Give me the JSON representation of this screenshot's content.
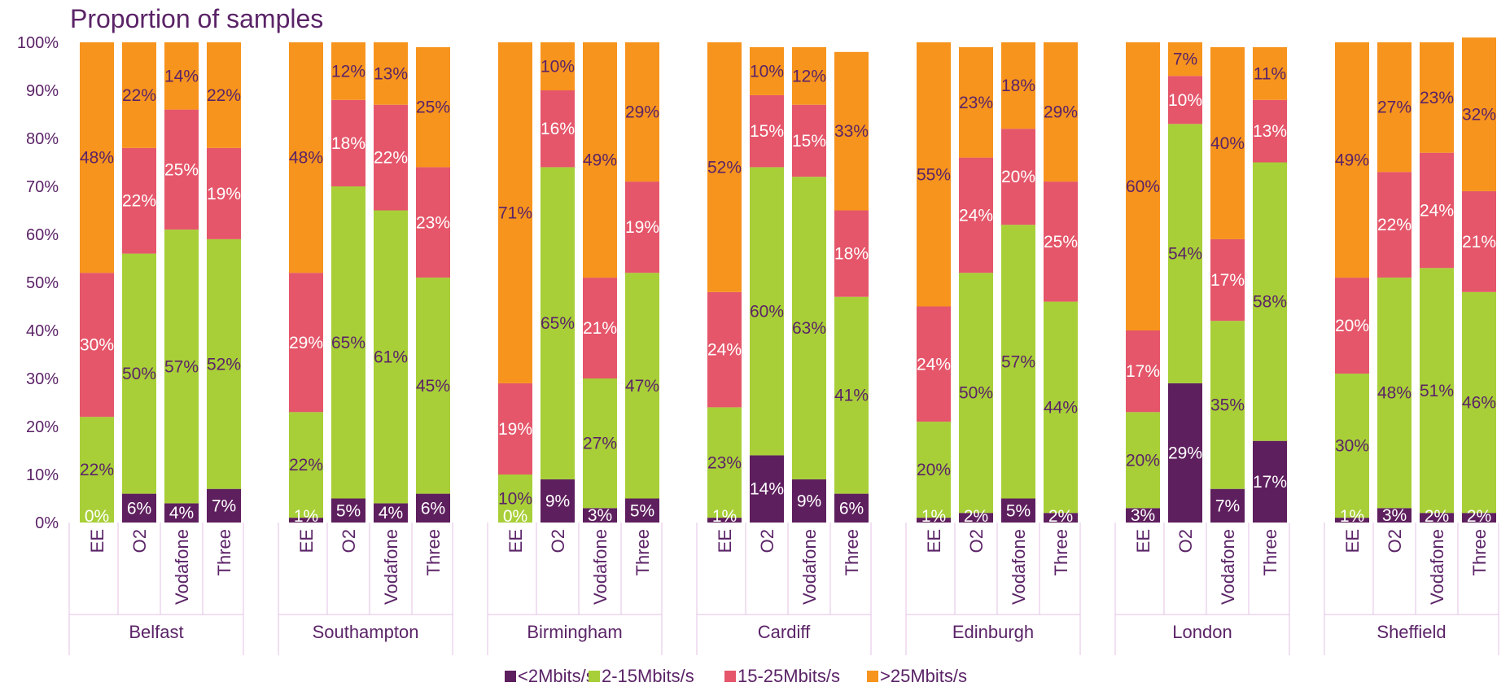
{
  "chart_data": {
    "type": "bar",
    "stacked": true,
    "title": "Proportion of samples",
    "ylim": [
      0,
      100
    ],
    "yticks": [
      "0%",
      "10%",
      "20%",
      "30%",
      "40%",
      "50%",
      "60%",
      "70%",
      "80%",
      "90%",
      "100%"
    ],
    "legend_position": "bottom",
    "series": [
      {
        "name": "<2Mbits/s",
        "color": "#5e1f5e",
        "label_color": "#ffffff"
      },
      {
        "name": "2-15Mbits/s",
        "color": "#a8cf38",
        "label_color": "#5b2367"
      },
      {
        "name": "15-25Mbits/s",
        "color": "#e5566a",
        "label_color": "#ffffff"
      },
      {
        "name": ">25Mbits/s",
        "color": "#f7941d",
        "label_color": "#5b2367"
      }
    ],
    "groups": [
      {
        "city": "Belfast",
        "bars": [
          {
            "operator": "EE",
            "values": [
              0,
              22,
              30,
              48
            ],
            "labels": [
              "0%",
              "22%",
              "30%",
              "48%"
            ]
          },
          {
            "operator": "O2",
            "values": [
              6,
              50,
              22,
              22
            ],
            "labels": [
              "6%",
              "50%",
              "22%",
              "22%"
            ]
          },
          {
            "operator": "Vodafone",
            "values": [
              4,
              57,
              25,
              14
            ],
            "labels": [
              "4%",
              "57%",
              "25%",
              "14%"
            ]
          },
          {
            "operator": "Three",
            "values": [
              7,
              52,
              19,
              22
            ],
            "labels": [
              "7%",
              "52%",
              "19%",
              "22%"
            ]
          }
        ]
      },
      {
        "city": "Southampton",
        "bars": [
          {
            "operator": "EE",
            "values": [
              1,
              22,
              29,
              48
            ],
            "labels": [
              "1%",
              "22%",
              "29%",
              "48%"
            ]
          },
          {
            "operator": "O2",
            "values": [
              5,
              65,
              18,
              12
            ],
            "labels": [
              "5%",
              "65%",
              "18%",
              "12%"
            ]
          },
          {
            "operator": "Vodafone",
            "values": [
              4,
              61,
              22,
              13
            ],
            "labels": [
              "4%",
              "61%",
              "22%",
              "13%"
            ]
          },
          {
            "operator": "Three",
            "values": [
              6,
              45,
              23,
              25
            ],
            "labels": [
              "6%",
              "45%",
              "23%",
              "25%"
            ]
          }
        ]
      },
      {
        "city": "Birmingham",
        "bars": [
          {
            "operator": "EE",
            "values": [
              0,
              10,
              19,
              71
            ],
            "labels": [
              "0%",
              "10%",
              "19%",
              "71%"
            ]
          },
          {
            "operator": "O2",
            "values": [
              9,
              65,
              16,
              10
            ],
            "labels": [
              "9%",
              "65%",
              "16%",
              "10%"
            ]
          },
          {
            "operator": "Vodafone",
            "values": [
              3,
              27,
              21,
              49
            ],
            "labels": [
              "3%",
              "27%",
              "21%",
              "49%"
            ]
          },
          {
            "operator": "Three",
            "values": [
              5,
              47,
              19,
              29
            ],
            "labels": [
              "5%",
              "47%",
              "19%",
              "29%"
            ]
          }
        ]
      },
      {
        "city": "Cardiff",
        "bars": [
          {
            "operator": "EE",
            "values": [
              1,
              23,
              24,
              52
            ],
            "labels": [
              "1%",
              "23%",
              "24%",
              "52%"
            ]
          },
          {
            "operator": "O2",
            "values": [
              14,
              60,
              15,
              10
            ],
            "labels": [
              "14%",
              "60%",
              "15%",
              "10%"
            ]
          },
          {
            "operator": "Vodafone",
            "values": [
              9,
              63,
              15,
              12
            ],
            "labels": [
              "9%",
              "63%",
              "15%",
              "12%"
            ]
          },
          {
            "operator": "Three",
            "values": [
              6,
              41,
              18,
              33
            ],
            "labels": [
              "6%",
              "41%",
              "18%",
              "33%"
            ]
          }
        ]
      },
      {
        "city": "Edinburgh",
        "bars": [
          {
            "operator": "EE",
            "values": [
              1,
              20,
              24,
              55
            ],
            "labels": [
              "1%",
              "20%",
              "24%",
              "55%"
            ]
          },
          {
            "operator": "O2",
            "values": [
              2,
              50,
              24,
              23
            ],
            "labels": [
              "2%",
              "50%",
              "24%",
              "23%"
            ]
          },
          {
            "operator": "Vodafone",
            "values": [
              5,
              57,
              20,
              18
            ],
            "labels": [
              "5%",
              "57%",
              "20%",
              "18%"
            ]
          },
          {
            "operator": "Three",
            "values": [
              2,
              44,
              25,
              29
            ],
            "labels": [
              "2%",
              "44%",
              "25%",
              "29%"
            ]
          }
        ]
      },
      {
        "city": "London",
        "bars": [
          {
            "operator": "EE",
            "values": [
              3,
              20,
              17,
              60
            ],
            "labels": [
              "3%",
              "20%",
              "17%",
              "60%"
            ]
          },
          {
            "operator": "O2",
            "values": [
              29,
              54,
              10,
              7
            ],
            "labels": [
              "29%",
              "54%",
              "10%",
              "7%"
            ]
          },
          {
            "operator": "Vodafone",
            "values": [
              7,
              35,
              17,
              40
            ],
            "labels": [
              "7%",
              "35%",
              "17%",
              "40%"
            ]
          },
          {
            "operator": "Three",
            "values": [
              17,
              58,
              13,
              11
            ],
            "labels": [
              "17%",
              "58%",
              "13%",
              "11%"
            ]
          }
        ]
      },
      {
        "city": "Sheffield",
        "bars": [
          {
            "operator": "EE",
            "values": [
              1,
              30,
              20,
              49
            ],
            "labels": [
              "1%",
              "30%",
              "20%",
              "49%"
            ]
          },
          {
            "operator": "O2",
            "values": [
              3,
              48,
              22,
              27
            ],
            "labels": [
              "3%",
              "48%",
              "22%",
              "27%"
            ]
          },
          {
            "operator": "Vodafone",
            "values": [
              2,
              51,
              24,
              23
            ],
            "labels": [
              "2%",
              "51%",
              "24%",
              "23%"
            ]
          },
          {
            "operator": "Three",
            "values": [
              2,
              46,
              21,
              32
            ],
            "labels": [
              "2%",
              "46%",
              "21%",
              "32%"
            ]
          }
        ]
      }
    ]
  }
}
